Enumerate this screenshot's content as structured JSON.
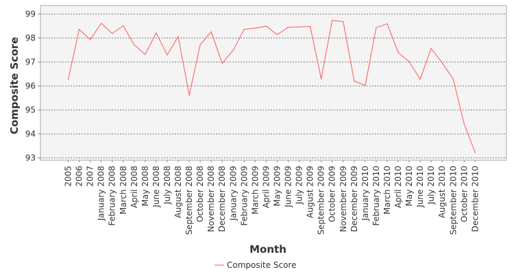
{
  "chart_data": {
    "type": "line",
    "xlabel": "Month",
    "ylabel": "Composite Score",
    "ylim": [
      93,
      99
    ],
    "yticks": [
      93,
      94,
      95,
      96,
      97,
      98,
      99
    ],
    "grid": true,
    "legend_position": "bottom",
    "categories": [
      "2005",
      "2006",
      "2007",
      "January 2008",
      "February 2008",
      "March 2008",
      "April 2008",
      "May 2008",
      "June 2008",
      "July 2008",
      "August 2008",
      "September 2008",
      "October 2008",
      "November 2008",
      "December 2008",
      "January 2009",
      "February 2009",
      "March 2009",
      "April 2009",
      "May 2009",
      "June 2009",
      "July 2009",
      "August 2009",
      "September 2009",
      "October 2009",
      "November 2009",
      "December 2009",
      "January 2010",
      "February 2010",
      "March 2010",
      "April 2010",
      "May 2010",
      "June 2010",
      "July 2010",
      "August 2010",
      "September 2010",
      "October 2010",
      "December 2010"
    ],
    "series": [
      {
        "name": "Composite Score",
        "color": "#ff5555",
        "values": [
          96.25,
          98.35,
          97.92,
          98.6,
          98.17,
          98.5,
          97.7,
          97.3,
          98.2,
          97.28,
          98.05,
          95.6,
          97.7,
          98.25,
          96.93,
          97.48,
          98.35,
          98.4,
          98.48,
          98.13,
          98.43,
          98.45,
          98.47,
          96.28,
          98.72,
          98.67,
          96.2,
          96.0,
          98.42,
          98.58,
          97.38,
          97.0,
          96.27,
          97.55,
          96.95,
          96.27,
          94.4,
          93.2
        ]
      }
    ]
  },
  "colors": {
    "plot_background": "#f4f4f4",
    "gridline": "#555555",
    "text": "#333333"
  }
}
